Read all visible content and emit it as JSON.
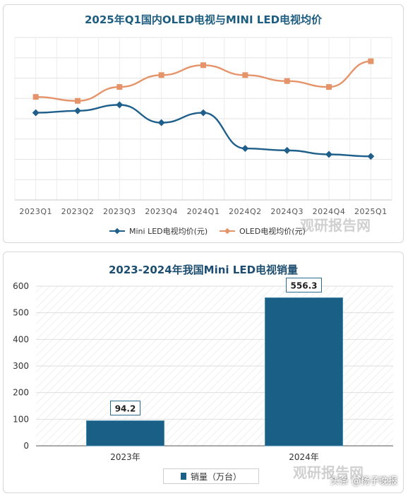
{
  "chart_data": [
    {
      "type": "line",
      "title": "2025年Q1国内OLED电视与MINI LED电视均价",
      "categories": [
        "2023Q1",
        "2023Q2",
        "2023Q3",
        "2023Q4",
        "2024Q1",
        "2024Q2",
        "2024Q3",
        "2024Q4",
        "2025Q1"
      ],
      "series": [
        {
          "name": "Mini LED电视均价(元)",
          "values": [
            6700,
            6750,
            6900,
            6450,
            6700,
            5800,
            5750,
            5650,
            5600
          ],
          "color": "#1f5f8b"
        },
        {
          "name": "OLED电视均价(元)",
          "values": [
            7100,
            7000,
            7350,
            7650,
            7900,
            7650,
            7500,
            7350,
            8000
          ],
          "color": "#e5946a"
        }
      ],
      "ylim": [
        4500,
        8600
      ],
      "grid": true,
      "legend_position": "bottom"
    },
    {
      "type": "bar",
      "title": "2023-2024年我国Mini LED电视销量",
      "categories": [
        "2023年",
        "2024年"
      ],
      "series": [
        {
          "name": "销量（万台）",
          "values": [
            94.2,
            556.3
          ],
          "color": "#1a5f85"
        }
      ],
      "data_labels": [
        "94.2",
        "556.3"
      ],
      "yticks": [
        "0",
        "100",
        "200",
        "300",
        "400",
        "500",
        "600"
      ],
      "ylim": [
        0,
        600
      ],
      "grid": true,
      "legend_position": "bottom"
    }
  ],
  "watermark": "观研报告网",
  "footer": "头条 @扬子晚报"
}
